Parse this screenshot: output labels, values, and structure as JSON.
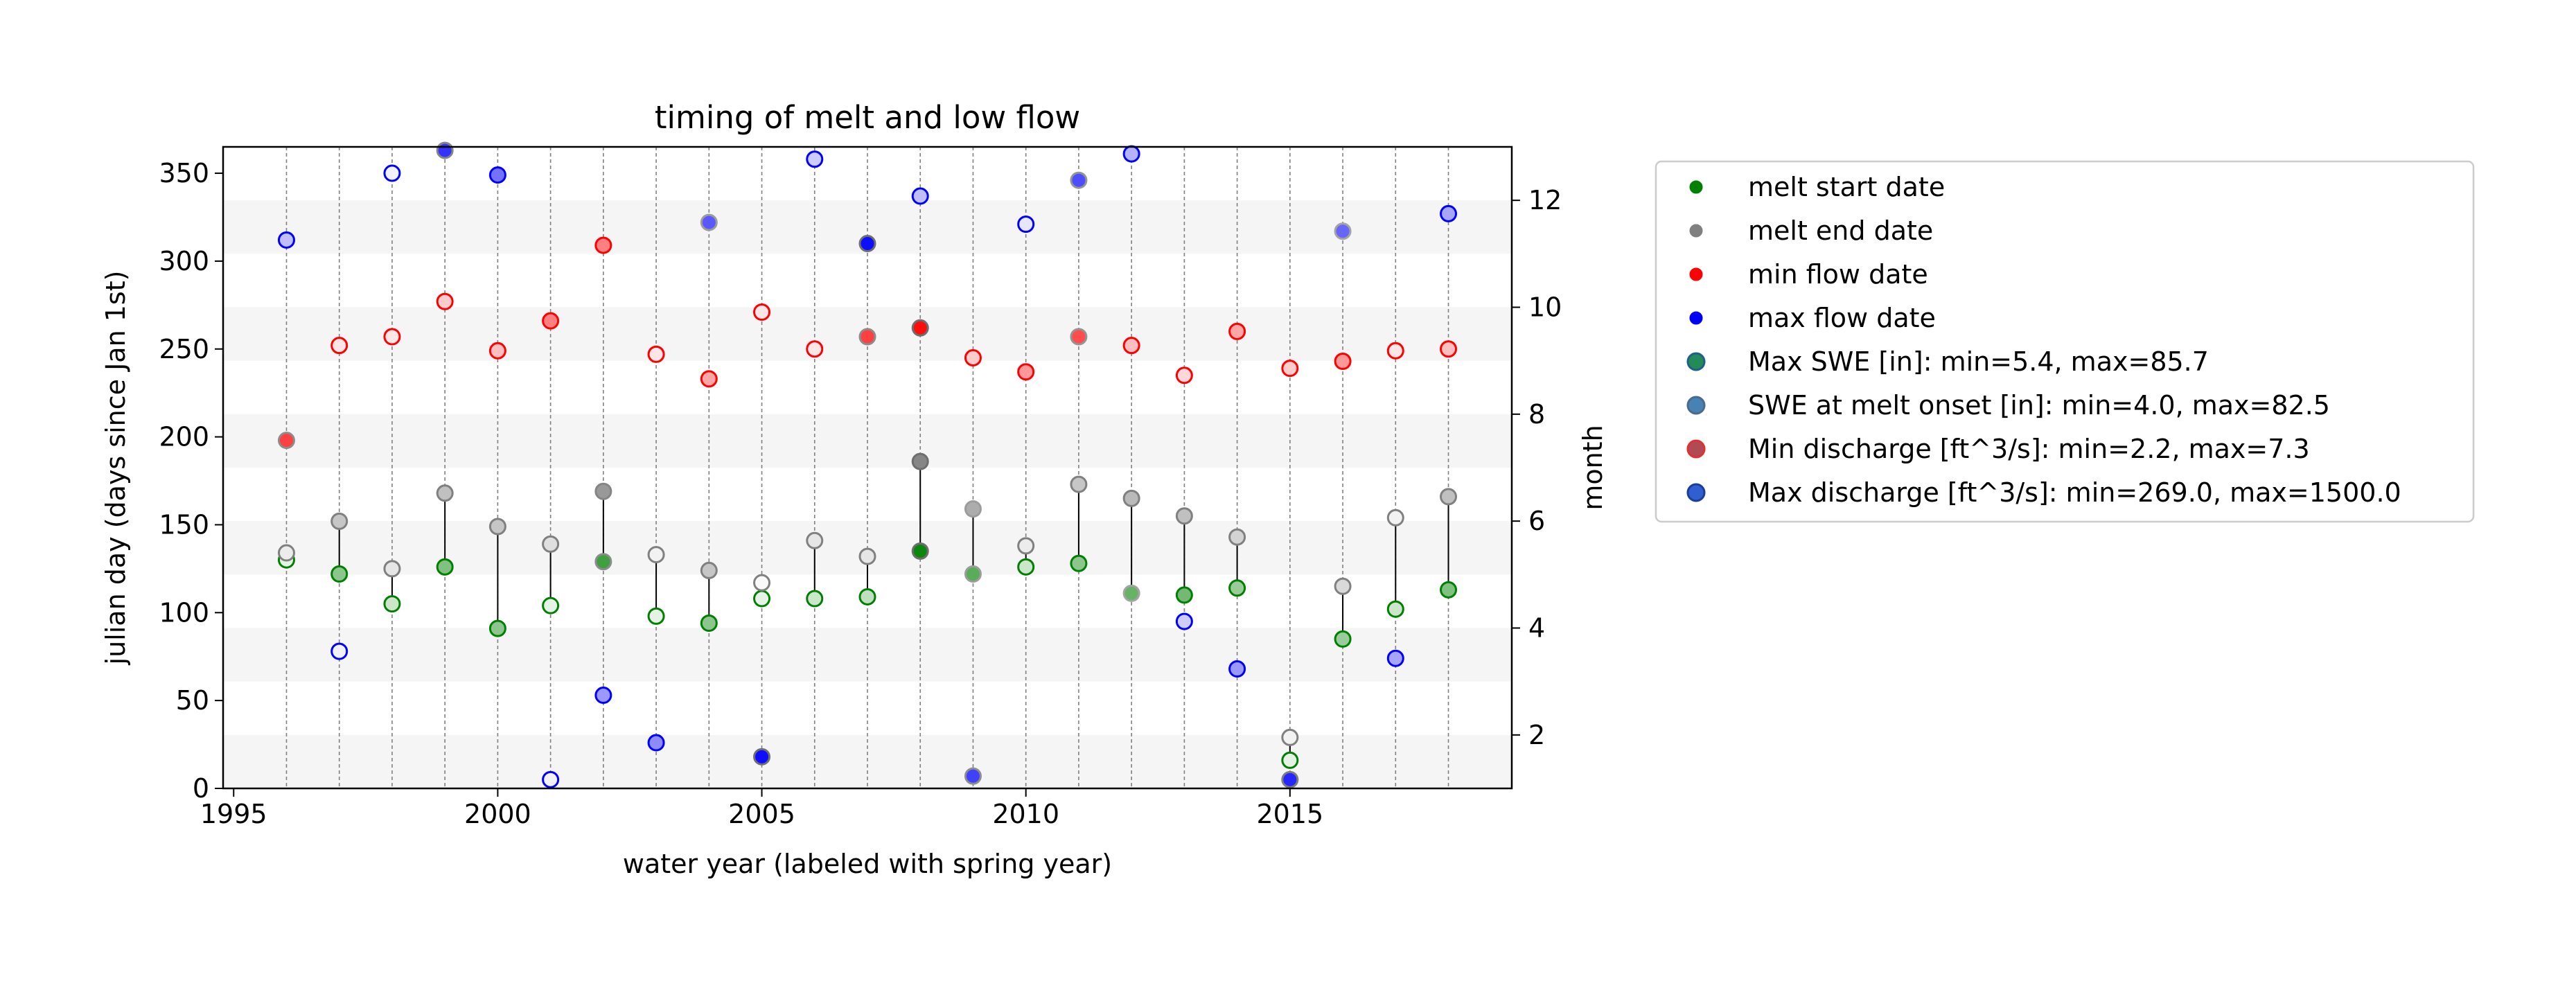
{
  "chart_data": {
    "type": "scatter",
    "title": "timing of melt and low flow",
    "xlabel": "water year (labeled with spring year)",
    "ylabel": "julian day (days since Jan 1st)",
    "y2label": "month",
    "xlim": [
      1994.8,
      2019.2
    ],
    "ylim": [
      0,
      365
    ],
    "y2lim": [
      1,
      13
    ],
    "xticks": [
      1995,
      2000,
      2005,
      2010,
      2015
    ],
    "yticks": [
      0,
      50,
      100,
      150,
      200,
      250,
      300,
      350
    ],
    "y2ticks": [
      2,
      4,
      6,
      8,
      10,
      12
    ],
    "grid": "vertical dashed lines at each water year; alternating shaded month bands",
    "years": [
      1996,
      1997,
      1998,
      1999,
      2000,
      2001,
      2002,
      2003,
      2004,
      2005,
      2006,
      2007,
      2008,
      2009,
      2010,
      2011,
      2012,
      2013,
      2014,
      2015,
      2016,
      2017,
      2018
    ],
    "melt_start": [
      130,
      122,
      105,
      126,
      91,
      104,
      129,
      98,
      94,
      108,
      108,
      109,
      135,
      122,
      126,
      128,
      111,
      110,
      114,
      16,
      85,
      102,
      113
    ],
    "melt_start_fill": [
      0.1,
      0.45,
      0.2,
      0.5,
      0.45,
      0.1,
      0.75,
      0.1,
      0.45,
      0.1,
      0.2,
      0.25,
      0.95,
      0.65,
      0.2,
      0.45,
      0.6,
      0.55,
      0.4,
      0.1,
      0.4,
      0.2,
      0.5
    ],
    "melt_end": [
      134,
      152,
      125,
      168,
      149,
      139,
      169,
      133,
      124,
      117,
      141,
      132,
      186,
      159,
      138,
      173,
      165,
      155,
      143,
      29,
      115,
      154,
      166
    ],
    "melt_end_fill": [
      0.15,
      0.45,
      0.2,
      0.5,
      0.45,
      0.25,
      0.8,
      0.1,
      0.45,
      0.05,
      0.2,
      0.2,
      0.95,
      0.65,
      0.15,
      0.45,
      0.55,
      0.5,
      0.35,
      0.1,
      0.3,
      0.1,
      0.5
    ],
    "min_flow": [
      198,
      252,
      257,
      277,
      249,
      266,
      309,
      247,
      233,
      271,
      250,
      257,
      262,
      245,
      237,
      257,
      252,
      235,
      260,
      239,
      243,
      249,
      250
    ],
    "min_flow_fill": [
      0.75,
      0.1,
      0.1,
      0.2,
      0.25,
      0.5,
      0.5,
      0.1,
      0.35,
      0.1,
      0.1,
      0.75,
      0.95,
      0.2,
      0.4,
      0.7,
      0.25,
      0.15,
      0.35,
      0.2,
      0.4,
      0.1,
      0.25
    ],
    "max_flow": [
      312,
      78,
      350,
      363,
      349,
      5,
      53,
      26,
      322,
      18,
      358,
      310,
      337,
      7,
      321,
      346,
      361,
      95,
      68,
      5,
      317,
      74,
      327
    ],
    "max_flow_fill": [
      0.25,
      0.05,
      0.05,
      0.8,
      0.55,
      0.05,
      0.4,
      0.45,
      0.65,
      0.95,
      0.2,
      0.95,
      0.25,
      0.75,
      0.1,
      0.7,
      0.3,
      0.2,
      0.4,
      0.85,
      0.6,
      0.35,
      0.35
    ],
    "legend_placement": "outside right",
    "legend": [
      "melt start date",
      "melt end date",
      "min flow date",
      "max flow date",
      "Max SWE [in]: min=5.4, max=85.7",
      "SWE at melt onset [in]: min=4.0, max=82.5",
      "Min discharge [ft^3/s]: min=2.2, max=7.3",
      "Max discharge [ft^3/s]: min=269.0, max=1500.0"
    ],
    "colors": {
      "melt_start": "#008000",
      "melt_end": "#808080",
      "min_flow": "#ff0000",
      "max_flow": "#0000ff",
      "band": "#f5f5f5",
      "connector": "#000000"
    }
  }
}
